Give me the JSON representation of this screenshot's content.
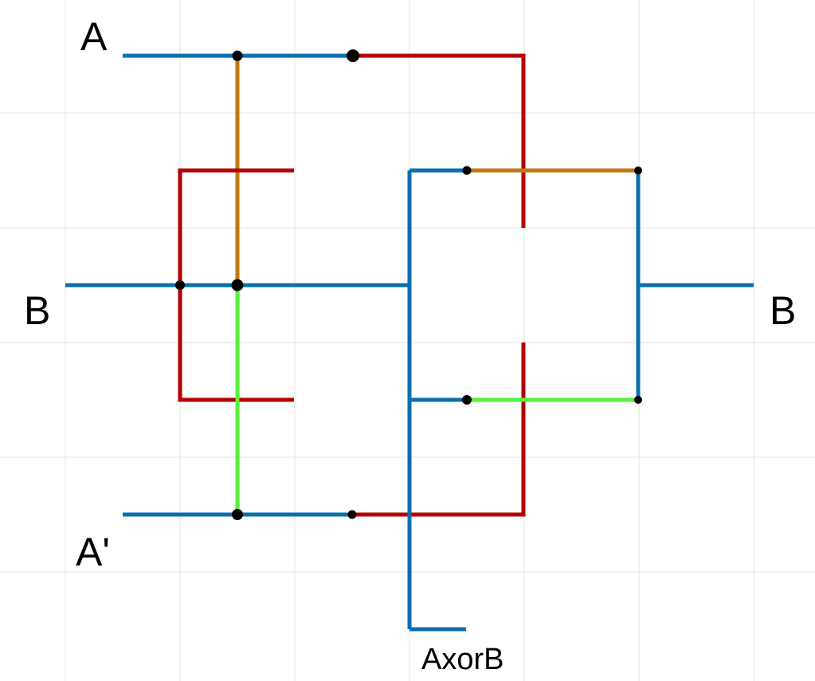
{
  "labels": {
    "a_input": "A",
    "a_not_input": "A'",
    "b_input": "B",
    "b_output": "B",
    "xor_output": "AxorB"
  },
  "colors": {
    "background": "#ffffff",
    "grid": "#e3e3e3",
    "wire_blue": "#0a6fae",
    "wire_red": "#b30000",
    "wire_orange": "#c0780f",
    "wire_green": "#55f23a",
    "junction": "#000000"
  },
  "wires": [
    {
      "name": "wire-a-input",
      "color": "wire_blue"
    },
    {
      "name": "wire-a-red-top",
      "color": "wire_red"
    },
    {
      "name": "wire-a-orange-drop",
      "color": "wire_orange"
    },
    {
      "name": "wire-b-input",
      "color": "wire_blue"
    },
    {
      "name": "wire-left-red-bracket",
      "color": "wire_red"
    },
    {
      "name": "wire-b-to-bus",
      "color": "wire_blue"
    },
    {
      "name": "wire-a-not-green-rise",
      "color": "wire_green"
    },
    {
      "name": "wire-a-not-input",
      "color": "wire_blue"
    },
    {
      "name": "wire-a-not-red-bottom",
      "color": "wire_red"
    },
    {
      "name": "wire-center-blue-bus",
      "color": "wire_blue"
    },
    {
      "name": "wire-xor-output-stub",
      "color": "wire_blue"
    },
    {
      "name": "wire-upper-blue-branch",
      "color": "wire_blue"
    },
    {
      "name": "wire-upper-orange",
      "color": "wire_orange"
    },
    {
      "name": "wire-lower-blue-branch",
      "color": "wire_blue"
    },
    {
      "name": "wire-lower-green",
      "color": "wire_green"
    },
    {
      "name": "wire-right-blue-loop",
      "color": "wire_blue"
    },
    {
      "name": "wire-b-output",
      "color": "wire_blue"
    }
  ],
  "junctions": [
    {
      "name": "junction-a-orange"
    },
    {
      "name": "junction-a-red"
    },
    {
      "name": "junction-b-left-bracket"
    },
    {
      "name": "junction-b-center"
    },
    {
      "name": "junction-a-not-green"
    },
    {
      "name": "junction-a-not-red"
    },
    {
      "name": "junction-upper-blue-orange"
    },
    {
      "name": "junction-upper-right"
    },
    {
      "name": "junction-lower-blue-green"
    },
    {
      "name": "junction-lower-right"
    }
  ]
}
